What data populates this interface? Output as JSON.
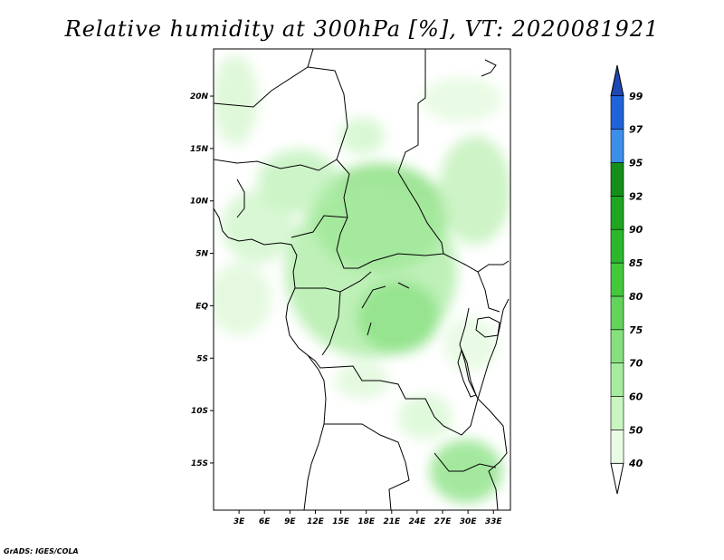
{
  "title": "Relative humidity at 300hPa [%], VT: 2020081921",
  "credit": "GrADS: IGES/COLA",
  "map": {
    "lon_range": [
      0,
      35
    ],
    "lat_range": [
      -19.5,
      24.5
    ],
    "lon_ticks": [
      "3E",
      "6E",
      "9E",
      "12E",
      "15E",
      "18E",
      "21E",
      "24E",
      "27E",
      "30E",
      "33E"
    ],
    "lat_ticks": [
      "20N",
      "15N",
      "10N",
      "5N",
      "EQ",
      "5S",
      "10S",
      "15S"
    ],
    "fill_color": "#2db72d"
  },
  "colorbar": {
    "labels": [
      "40",
      "50",
      "60",
      "70",
      "75",
      "80",
      "85",
      "90",
      "92",
      "95",
      "97",
      "99"
    ],
    "colors": [
      "#ffffff",
      "#e9fbe5",
      "#c8f5c0",
      "#a6eba0",
      "#86e07e",
      "#63d45b",
      "#43c83b",
      "#2db72d",
      "#1fa51f",
      "#14901a",
      "#3c8ee8",
      "#1e63d8",
      "#1e46b4"
    ]
  }
}
